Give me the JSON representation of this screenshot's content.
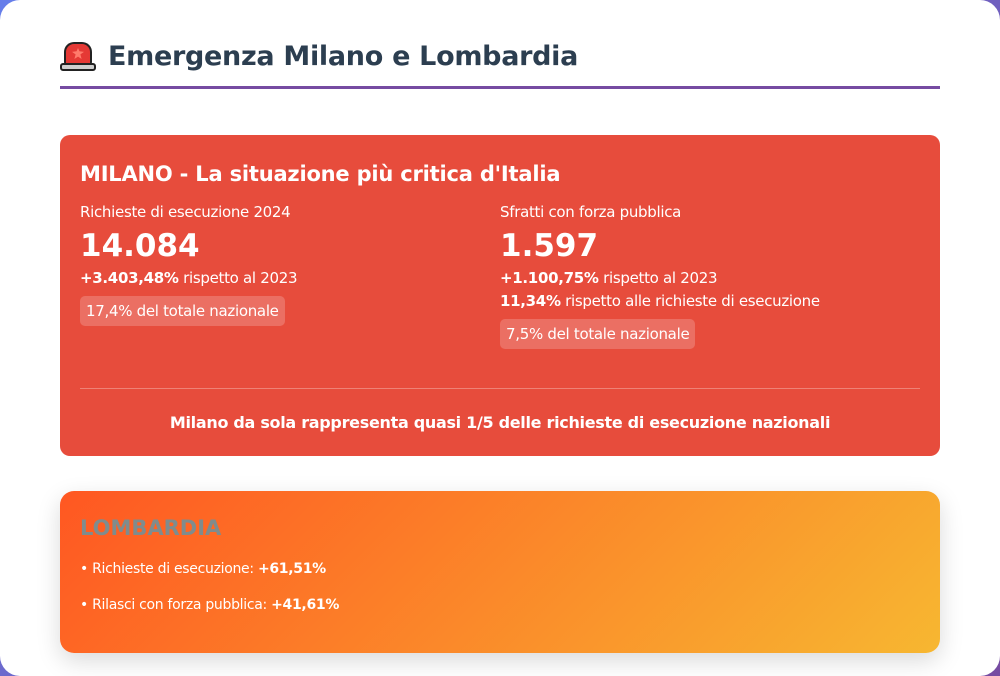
{
  "header": {
    "icon": "police-siren-icon",
    "title": "Emergenza Milano e Lombardia"
  },
  "milano": {
    "title": "MILANO - La situazione più critica d'Italia",
    "left": {
      "label": "Richieste di esecuzione 2024",
      "value": "14.084",
      "change_value": "+3.403,48%",
      "change_text": "rispetto al 2023",
      "badge": "17,4% del totale nazionale"
    },
    "right": {
      "label": "Sfratti con forza pubblica",
      "value": "1.597",
      "change_value": "+1.100,75%",
      "change_text": "rispetto al 2023",
      "ratio_value": "11,34%",
      "ratio_text": "rispetto alle richieste di esecuzione",
      "badge": "7,5% del totale nazionale"
    },
    "summary": "Milano da sola rappresenta quasi 1/5 delle richieste di esecuzione nazionali"
  },
  "lombardia": {
    "title": "LOMBARDIA",
    "items": [
      {
        "label": "• Richieste di esecuzione:",
        "value": "+61,51%"
      },
      {
        "label": "• Rilasci con forza pubblica:",
        "value": "+41,61%"
      }
    ]
  },
  "colors": {
    "accent": "#764ba2",
    "milano_bg": "#e74c3c",
    "title": "#2c3e50",
    "lombardia_gradient_start": "#ff5722",
    "lombardia_gradient_end": "#f7b731"
  }
}
